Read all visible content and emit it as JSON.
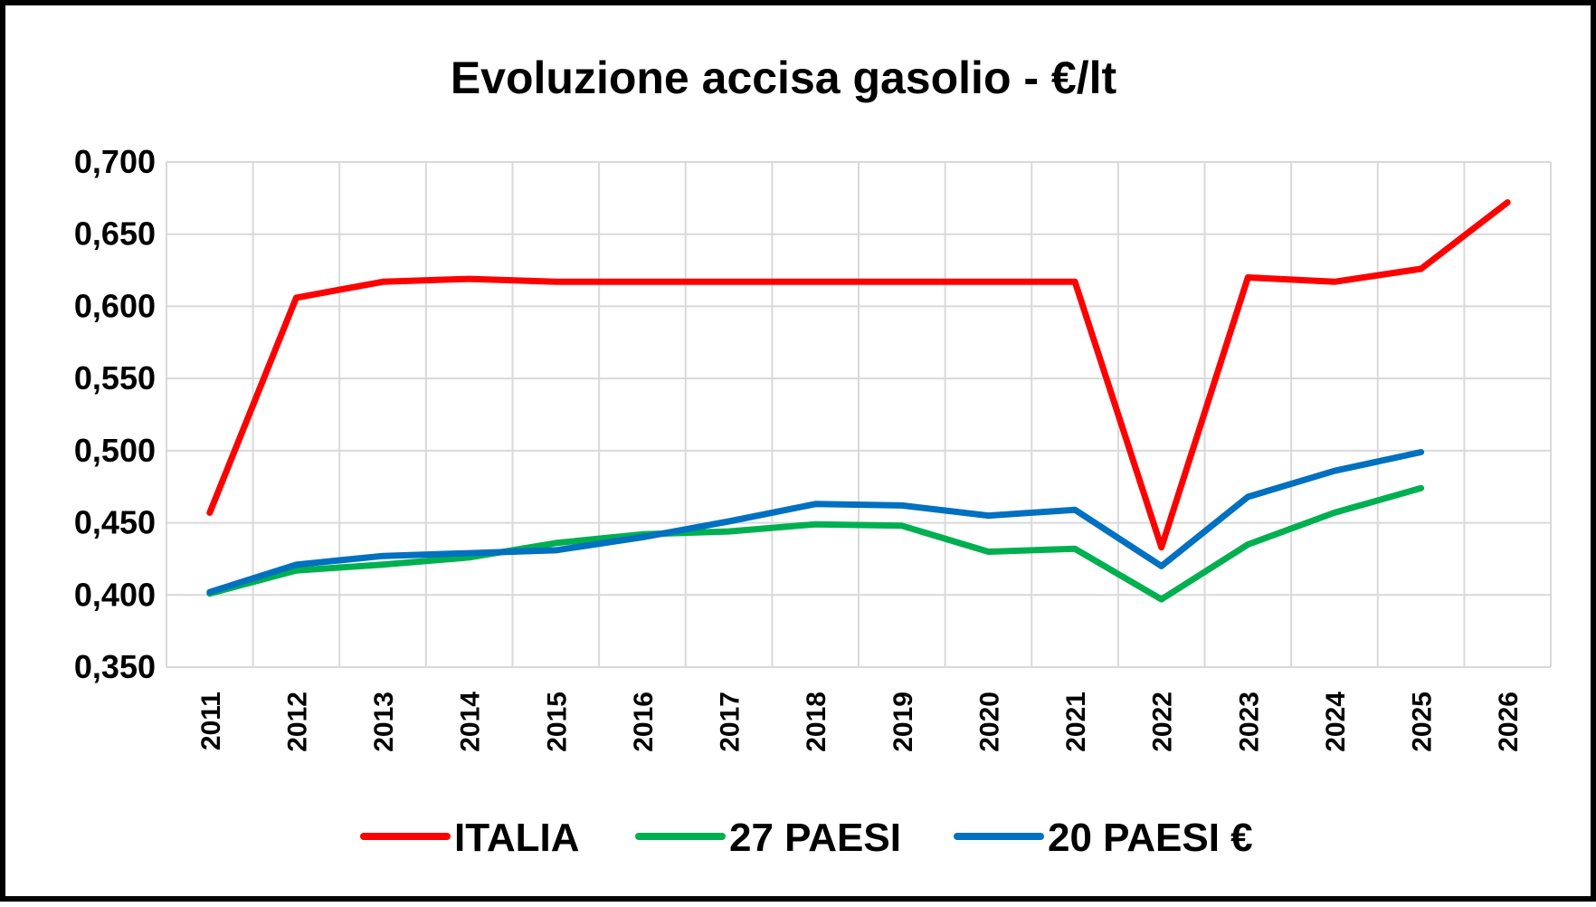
{
  "chart_data": {
    "type": "line",
    "title": "Evoluzione accisa gasolio - €/lt",
    "xlabel": "",
    "ylabel": "",
    "categories": [
      "2011",
      "2012",
      "2013",
      "2014",
      "2015",
      "2016",
      "2017",
      "2018",
      "2019",
      "2020",
      "2021",
      "2022",
      "2023",
      "2024",
      "2025",
      "2026"
    ],
    "ylim": [
      0.35,
      0.7
    ],
    "yticks": [
      0.35,
      0.4,
      0.45,
      0.5,
      0.55,
      0.6,
      0.65,
      0.7
    ],
    "ytick_labels": [
      "0,350",
      "0,400",
      "0,450",
      "0,500",
      "0,550",
      "0,600",
      "0,650",
      "0,700"
    ],
    "grid": true,
    "legend_position": "bottom",
    "series": [
      {
        "name": "ITALIA",
        "color": "#ff0000",
        "values": [
          0.457,
          0.606,
          0.617,
          0.619,
          0.617,
          0.617,
          0.617,
          0.617,
          0.617,
          0.617,
          0.617,
          0.433,
          0.62,
          0.617,
          0.626,
          0.672
        ]
      },
      {
        "name": "27 PAESI",
        "color": "#00b050",
        "values": [
          0.401,
          0.417,
          0.421,
          0.426,
          0.436,
          0.442,
          0.444,
          0.449,
          0.448,
          0.43,
          0.432,
          0.397,
          0.435,
          0.457,
          0.474,
          null
        ]
      },
      {
        "name": "20 PAESI €",
        "color": "#0070c0",
        "values": [
          0.402,
          0.421,
          0.427,
          0.429,
          0.431,
          0.44,
          0.451,
          0.463,
          0.462,
          0.455,
          0.459,
          0.42,
          0.468,
          0.486,
          0.499,
          null
        ]
      }
    ]
  }
}
